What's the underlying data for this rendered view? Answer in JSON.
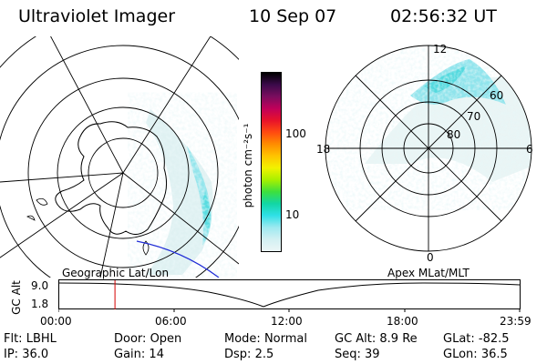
{
  "header": {
    "instrument": "Ultraviolet Imager",
    "date": "10 Sep 07",
    "time": "02:56:32 UT"
  },
  "colorbar": {
    "unit_label": "photon cm⁻²s⁻¹",
    "tick_labels": [
      "100",
      "10"
    ],
    "tick_values": [
      100,
      10
    ],
    "colors": [
      "#000000",
      "#3b0a4a",
      "#7a0d5e",
      "#c0005a",
      "#e8122a",
      "#ff4a10",
      "#ff8c00",
      "#ffc400",
      "#f2f200",
      "#a8f000",
      "#3de03d",
      "#12d6a4",
      "#2fe0e6",
      "#9ee9f0",
      "#d2f0f2",
      "#ecf6f6"
    ]
  },
  "geographic_map": {
    "caption": "Geographic Lat/Lon",
    "coast_color": "#000000",
    "terminator_color": "#1f2bd6"
  },
  "apex_map": {
    "caption": "Apex MLat/MLT",
    "mlt_labels": [
      "12",
      "18",
      "6",
      "0"
    ],
    "mlat_labels": [
      "60",
      "70",
      "80"
    ]
  },
  "timeline": {
    "axis_title": "GC Alt",
    "y_labels": [
      "9.0",
      "1.8"
    ],
    "x_labels": [
      "00:00",
      "06:00",
      "12:00",
      "18:00",
      "23:59"
    ],
    "current_time_marker": "02:56:32",
    "marker_color": "#d40000"
  },
  "footer": {
    "rows": [
      [
        {
          "key": "Flt:",
          "value": "LBHL"
        },
        {
          "key": "Door:",
          "value": "Open"
        },
        {
          "key": "Mode:",
          "value": "Normal"
        },
        {
          "key": "GC Alt:",
          "value": "8.9 Re"
        },
        {
          "key": "GLat:",
          "value": "-82.5"
        }
      ],
      [
        {
          "key": "IP:",
          "value": "36.0"
        },
        {
          "key": "Gain:",
          "value": "14"
        },
        {
          "key": "Dsp:",
          "value": "2.5"
        },
        {
          "key": "Seq:",
          "value": "39"
        },
        {
          "key": "GLon:",
          "value": "36.5"
        }
      ]
    ]
  }
}
